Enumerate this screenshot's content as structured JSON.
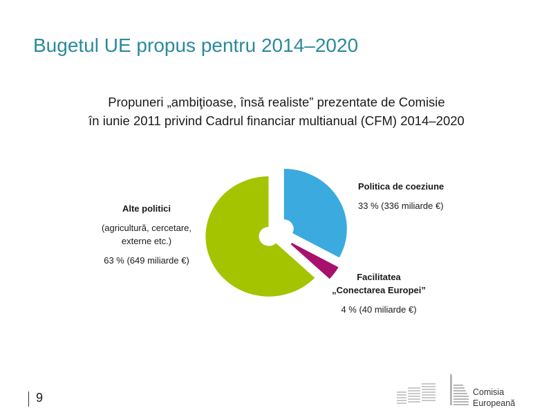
{
  "slide": {
    "title": "Bugetul UE propus pentru 2014–2020",
    "subtitle_line1": "Propuneri „ambiţioase, însă realiste” prezentate de Comisie",
    "subtitle_line2": "în iunie 2011 privind Cadrul financiar multianual (CFM) 2014‒2020"
  },
  "chart_data": {
    "type": "pie",
    "title": "",
    "slices": [
      {
        "name": "Politica de coeziune",
        "percent": 33,
        "value_label": "33 % (336 miliarde €)",
        "color": "#3aaadf"
      },
      {
        "name": "Facilitatea „Conectarea Europei”",
        "name_line1": "Facilitatea",
        "name_line2": "„Conectarea Europei”",
        "percent": 4,
        "value_label": "4 % (40 miliarde €)",
        "color": "#a8106e"
      },
      {
        "name": "Alte politici",
        "note_line1": "(agricultură, cercetare,",
        "note_line2": "externe etc.)",
        "percent": 63,
        "value_label": "63 % (649 miliarde €)",
        "color": "#a4c400"
      }
    ]
  },
  "footer": {
    "page_number": "9",
    "logo_line1": "Comisia",
    "logo_line2": "Europeană"
  }
}
